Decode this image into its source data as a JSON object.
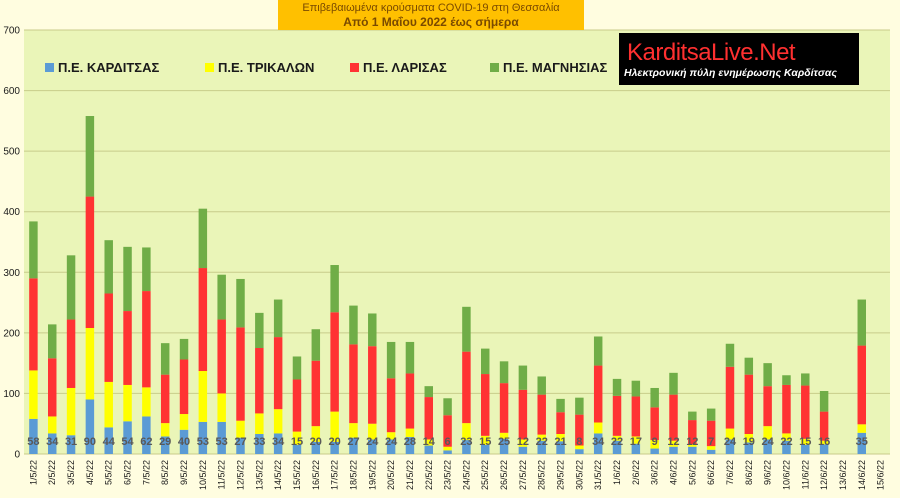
{
  "header": {
    "title": "Επιβεβαιωμένα κρούσματα COVID-19 στη Θεσσαλία",
    "subtitle": "Από 1 Μαΐου 2022 έως σήμερα"
  },
  "logo": {
    "name": "KarditsaLive.Net",
    "tagline": "Ηλεκτρονική πύλη ενημέρωσης Καρδίτσας"
  },
  "colors": {
    "background": "#fffde0",
    "plot_area": "#eaf5b8",
    "gridline": "#c8cc8a",
    "Karditsa": "#5b9bd5",
    "Trikala": "#ffff00",
    "Larisa": "#ff3333",
    "Magnesia": "#70ad47"
  },
  "chart_data": {
    "type": "bar",
    "stacked": true,
    "ylim": [
      0,
      700
    ],
    "yticks": [
      0,
      100,
      200,
      300,
      400,
      500,
      600,
      700
    ],
    "grid": true,
    "legend_position": "top-left",
    "categories": [
      "1/5/22",
      "2/5/22",
      "3/5/22",
      "4/5/22",
      "5/5/22",
      "6/5/22",
      "7/5/22",
      "8/5/22",
      "9/5/22",
      "10/5/22",
      "11/5/22",
      "12/5/22",
      "13/5/22",
      "14/5/22",
      "15/5/22",
      "16/5/22",
      "17/5/22",
      "18/5/22",
      "19/5/22",
      "20/5/22",
      "21/5/22",
      "22/5/22",
      "23/5/22",
      "24/5/22",
      "25/5/22",
      "26/5/22",
      "27/5/22",
      "28/5/22",
      "29/5/22",
      "30/5/22",
      "31/5/22",
      "1/6/22",
      "2/6/22",
      "3/6/22",
      "4/6/22",
      "5/6/22",
      "6/6/22",
      "7/6/22",
      "8/6/22",
      "9/6/22",
      "10/6/22",
      "11/6/22",
      "12/6/22",
      "13/6/22",
      "14/6/22",
      "15/6/22"
    ],
    "data_labels": [
      "58",
      "34",
      "31",
      "90",
      "44",
      "54",
      "62",
      "29",
      "40",
      "53",
      "53",
      "27",
      "33",
      "34",
      "15",
      "20",
      "20",
      "27",
      "24",
      "24",
      "28",
      "14",
      "6",
      "23",
      "15",
      "25",
      "12",
      "22",
      "21",
      "8",
      "34",
      "22",
      "17",
      "9",
      "12",
      "12",
      "7",
      "24",
      "19",
      "24",
      "22",
      "15",
      "16",
      "",
      "35",
      ""
    ],
    "series": [
      {
        "name": "Π.Ε. ΚΑΡΔΙΤΣΑΣ",
        "values": [
          58,
          34,
          31,
          90,
          44,
          54,
          62,
          29,
          40,
          53,
          53,
          27,
          33,
          34,
          15,
          20,
          20,
          27,
          24,
          24,
          28,
          14,
          6,
          23,
          15,
          25,
          12,
          22,
          21,
          8,
          34,
          22,
          17,
          9,
          12,
          12,
          7,
          24,
          19,
          24,
          22,
          15,
          16,
          0,
          35,
          0
        ]
      },
      {
        "name": "Π.Ε. ΤΡΙΚΑΛΩΝ",
        "values": [
          80,
          28,
          78,
          118,
          75,
          60,
          48,
          22,
          26,
          84,
          47,
          28,
          34,
          40,
          22,
          26,
          50,
          24,
          26,
          12,
          14,
          10,
          6,
          28,
          15,
          10,
          12,
          10,
          12,
          6,
          18,
          8,
          12,
          14,
          10,
          4,
          6,
          18,
          14,
          22,
          12,
          10,
          6,
          0,
          14,
          0
        ]
      },
      {
        "name": "Π.Ε. ΛΑΡΙΣΑΣ",
        "values": [
          152,
          96,
          113,
          217,
          146,
          122,
          159,
          80,
          90,
          170,
          122,
          154,
          108,
          119,
          86,
          108,
          164,
          130,
          128,
          89,
          91,
          70,
          52,
          118,
          102,
          82,
          82,
          66,
          36,
          51,
          94,
          66,
          66,
          54,
          76,
          40,
          42,
          102,
          98,
          66,
          80,
          88,
          48,
          0,
          130,
          0
        ]
      },
      {
        "name": "Π.Ε. ΜΑΓΝΗΣΙΑΣ",
        "values": [
          94,
          56,
          106,
          133,
          88,
          106,
          72,
          52,
          34,
          98,
          74,
          80,
          58,
          62,
          38,
          52,
          78,
          64,
          54,
          60,
          52,
          18,
          28,
          74,
          42,
          36,
          40,
          30,
          22,
          28,
          48,
          28,
          26,
          32,
          36,
          14,
          20,
          38,
          28,
          38,
          16,
          20,
          34,
          0,
          76,
          0
        ]
      }
    ]
  }
}
